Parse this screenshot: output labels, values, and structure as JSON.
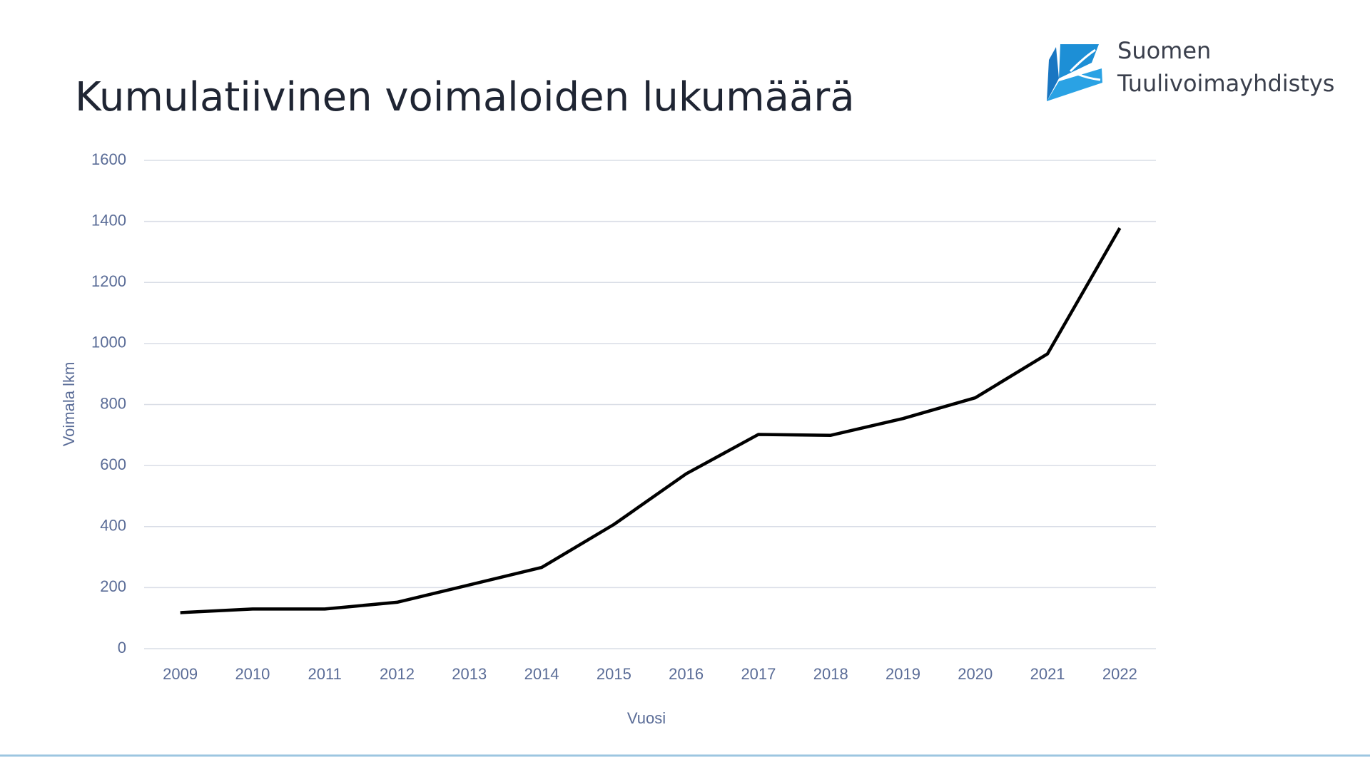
{
  "chart_data": {
    "type": "line",
    "title": "Kumulatiivinen voimaloiden lukumäärä",
    "xlabel": "Vuosi",
    "ylabel": "Voimala lkm",
    "categories": [
      "2009",
      "2010",
      "2011",
      "2012",
      "2013",
      "2014",
      "2015",
      "2016",
      "2017",
      "2018",
      "2019",
      "2020",
      "2021",
      "2022"
    ],
    "series": [
      {
        "name": "Voimala lkm",
        "color": "#000000",
        "values": [
          118,
          130,
          130,
          152,
          209,
          266,
          407,
          573,
          702,
          699,
          754,
          822,
          966,
          1378
        ]
      }
    ],
    "ylim": [
      0,
      1600
    ],
    "yticks": [
      0,
      200,
      400,
      600,
      800,
      1000,
      1200,
      1400,
      1600
    ],
    "grid": true
  },
  "logo": [
    "Suomen",
    "Tuulivoimayhdistys"
  ]
}
